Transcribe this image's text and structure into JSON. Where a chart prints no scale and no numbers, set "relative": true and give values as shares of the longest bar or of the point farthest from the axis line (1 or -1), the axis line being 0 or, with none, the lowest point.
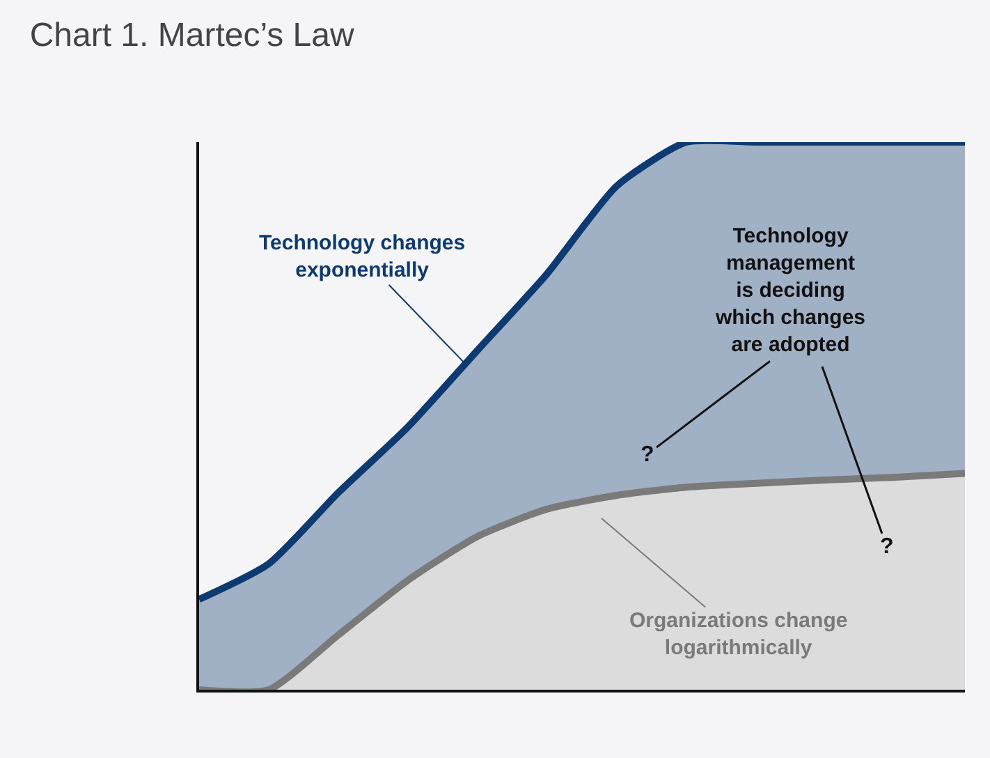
{
  "chart_data": {
    "type": "area",
    "relative": true,
    "title": "Chart 1. Martec’s Law",
    "categories": [
      null,
      null,
      null,
      null,
      null,
      null,
      null,
      null,
      null,
      null,
      null,
      null
    ],
    "series": [
      {
        "name": "Technology changes exponentially",
        "color": "#0d3a70",
        "values": [
          0.165,
          0.23,
          0.36,
          0.48,
          0.62,
          0.76,
          0.92,
          1,
          1,
          1,
          1,
          1
        ]
      },
      {
        "name": "Organizations change logarithmically",
        "color": "#7a7a7a",
        "values": [
          0,
          0,
          0.1,
          0.2,
          0.28,
          0.33,
          0.355,
          0.37,
          0.377,
          0.383,
          0.388,
          0.395
        ]
      }
    ],
    "annotations": [
      "Technology management is deciding which changes are adopted",
      "?",
      "?"
    ],
    "grid": false,
    "legend": false
  }
}
